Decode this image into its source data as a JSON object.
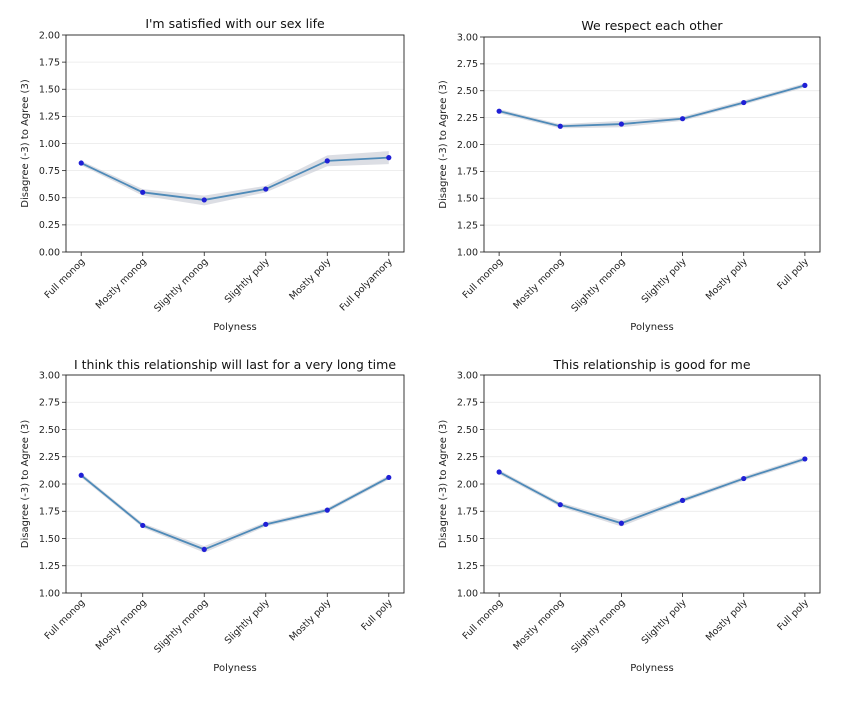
{
  "chart_data": [
    {
      "type": "line",
      "title": "I'm satisfied with our sex life",
      "xlabel": "Polyness",
      "ylabel": "Disagree (-3) to Agree (3)",
      "categories": [
        "Full monog",
        "Mostly monog",
        "Slightly monog",
        "Slightly poly",
        "Mostly poly",
        "Full polyamory"
      ],
      "values": [
        0.82,
        0.55,
        0.48,
        0.58,
        0.84,
        0.87
      ],
      "ci_low": [
        0.8,
        0.52,
        0.43,
        0.55,
        0.79,
        0.81
      ],
      "ci_high": [
        0.84,
        0.58,
        0.52,
        0.61,
        0.89,
        0.93
      ],
      "ylim": [
        0,
        2
      ],
      "yticks": [
        "0.00",
        "0.25",
        "0.50",
        "0.75",
        "1.00",
        "1.25",
        "1.50",
        "1.75",
        "2.00"
      ],
      "grid": "horizontal, light"
    },
    {
      "type": "line",
      "title": "We respect each other",
      "xlabel": "Polyness",
      "ylabel": "Disagree (-3) to Agree (3)",
      "categories": [
        "Full monog",
        "Mostly monog",
        "Slightly monog",
        "Slightly poly",
        "Mostly poly",
        "Full poly"
      ],
      "values": [
        2.31,
        2.17,
        2.19,
        2.24,
        2.39,
        2.55
      ],
      "ci_low": [
        2.29,
        2.15,
        2.16,
        2.22,
        2.37,
        2.53
      ],
      "ci_high": [
        2.33,
        2.19,
        2.22,
        2.26,
        2.41,
        2.57
      ],
      "ylim": [
        1,
        3
      ],
      "yticks": [
        "1.00",
        "1.25",
        "1.50",
        "1.75",
        "2.00",
        "2.25",
        "2.50",
        "2.75",
        "3.00"
      ],
      "grid": "horizontal, light"
    },
    {
      "type": "line",
      "title": "I think this relationship will last for a very long time",
      "xlabel": "Polyness",
      "ylabel": "Disagree (-3) to Agree (3)",
      "categories": [
        "Full monog",
        "Mostly monog",
        "Slightly monog",
        "Slightly poly",
        "Mostly poly",
        "Full poly"
      ],
      "values": [
        2.08,
        1.62,
        1.4,
        1.63,
        1.76,
        2.06
      ],
      "ci_low": [
        2.06,
        1.6,
        1.37,
        1.61,
        1.74,
        2.04
      ],
      "ci_high": [
        2.1,
        1.64,
        1.43,
        1.65,
        1.78,
        2.08
      ],
      "ylim": [
        1,
        3
      ],
      "yticks": [
        "1.00",
        "1.25",
        "1.50",
        "1.75",
        "2.00",
        "2.25",
        "2.50",
        "2.75",
        "3.00"
      ],
      "grid": "horizontal, light"
    },
    {
      "type": "line",
      "title": "This relationship is good for me",
      "xlabel": "Polyness",
      "ylabel": "Disagree (-3) to Agree (3)",
      "categories": [
        "Full monog",
        "Mostly monog",
        "Slightly monog",
        "Slightly poly",
        "Mostly poly",
        "Full poly"
      ],
      "values": [
        2.11,
        1.81,
        1.64,
        1.85,
        2.05,
        2.23
      ],
      "ci_low": [
        2.09,
        1.79,
        1.61,
        1.83,
        2.03,
        2.21
      ],
      "ci_high": [
        2.13,
        1.83,
        1.67,
        1.87,
        2.07,
        2.25
      ],
      "ylim": [
        1,
        3
      ],
      "yticks": [
        "1.00",
        "1.25",
        "1.50",
        "1.75",
        "2.00",
        "2.25",
        "2.50",
        "2.75",
        "3.00"
      ],
      "grid": "horizontal, light"
    }
  ]
}
